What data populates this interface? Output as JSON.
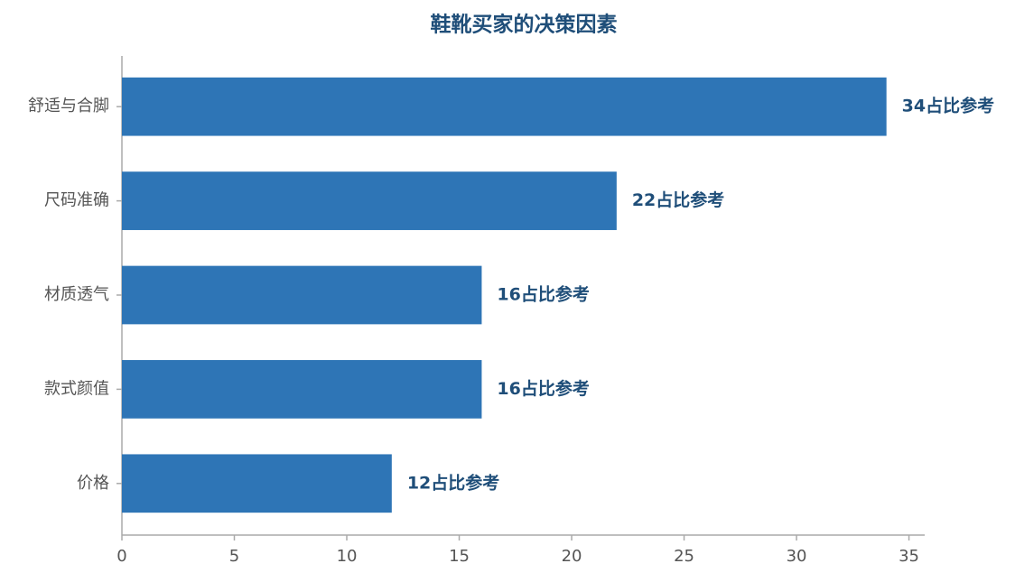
{
  "chart_data": {
    "type": "bar",
    "orientation": "horizontal",
    "title": "鞋靴买家的决策因素",
    "categories": [
      "舒适与合脚",
      "尺码准确",
      "材质透气",
      "款式颜值",
      "价格"
    ],
    "values": [
      34,
      22,
      16,
      16,
      12
    ],
    "value_labels": [
      "34占比参考",
      "22占比参考",
      "16占比参考",
      "16占比参考",
      "12占比参考"
    ],
    "color": "#2e75b6",
    "xlim": [
      0,
      35.7
    ],
    "xticks": [
      0,
      5,
      10,
      15,
      20,
      25,
      30,
      35
    ],
    "grid": false
  }
}
